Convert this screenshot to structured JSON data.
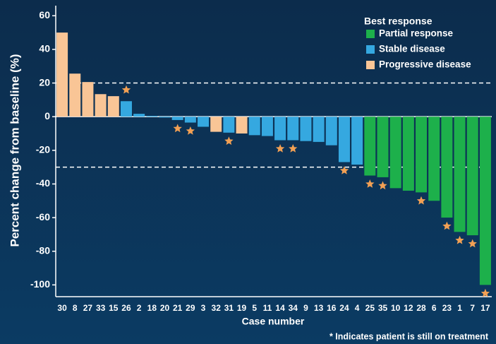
{
  "chart_data": {
    "type": "bar",
    "y_label": "Percent change from baseline (%)",
    "x_label": "Case number",
    "legend_title": "Best response",
    "footnote": "* Indicates patient is still on treatment",
    "categories": [
      "30",
      "8",
      "27",
      "33",
      "15",
      "26",
      "2",
      "18",
      "20",
      "21",
      "29",
      "3",
      "32",
      "31",
      "19",
      "5",
      "11",
      "14",
      "34",
      "9",
      "13",
      "16",
      "24",
      "4",
      "25",
      "35",
      "10",
      "12",
      "28",
      "6",
      "23",
      "1",
      "7",
      "17"
    ],
    "series": [
      {
        "name": "Partial response",
        "color": "#1db04b",
        "values": [
          null,
          null,
          null,
          null,
          null,
          null,
          null,
          null,
          null,
          null,
          null,
          null,
          null,
          null,
          null,
          null,
          null,
          null,
          null,
          null,
          null,
          null,
          null,
          null,
          -35,
          -36,
          -42.5,
          -44,
          -45,
          -50,
          -60,
          -68.5,
          -70.5,
          -100
        ]
      },
      {
        "name": "Stable disease",
        "color": "#35a8e0",
        "values": [
          null,
          null,
          null,
          null,
          null,
          9.2,
          1.7,
          0.5,
          -0.5,
          -2,
          -3.5,
          -6,
          null,
          -9.5,
          null,
          -11,
          -11.5,
          -14,
          -14,
          -14.5,
          -15,
          -17,
          -27,
          -28.5,
          null,
          null,
          null,
          null,
          null,
          null,
          null,
          null,
          null,
          null
        ]
      },
      {
        "name": "Progressive disease",
        "color": "#f9c596",
        "values": [
          50,
          25.6,
          20.6,
          13.4,
          12.2,
          null,
          null,
          null,
          null,
          null,
          null,
          null,
          -9,
          null,
          -10,
          null,
          null,
          null,
          null,
          null,
          null,
          null,
          null,
          null,
          null,
          null,
          null,
          null,
          null,
          null,
          null,
          null,
          null,
          null
        ]
      }
    ],
    "on_treatment": [
      false,
      false,
      false,
      false,
      false,
      true,
      false,
      false,
      false,
      true,
      true,
      false,
      false,
      true,
      false,
      false,
      false,
      true,
      true,
      false,
      false,
      false,
      true,
      false,
      true,
      true,
      false,
      false,
      true,
      false,
      true,
      true,
      true,
      true
    ],
    "star_color": "#f2a054",
    "reference_lines": [
      20,
      -30
    ],
    "ylim": [
      -107,
      66
    ],
    "yticks": [
      60,
      40,
      20,
      0,
      -20,
      -40,
      -60,
      -80,
      -100
    ]
  }
}
